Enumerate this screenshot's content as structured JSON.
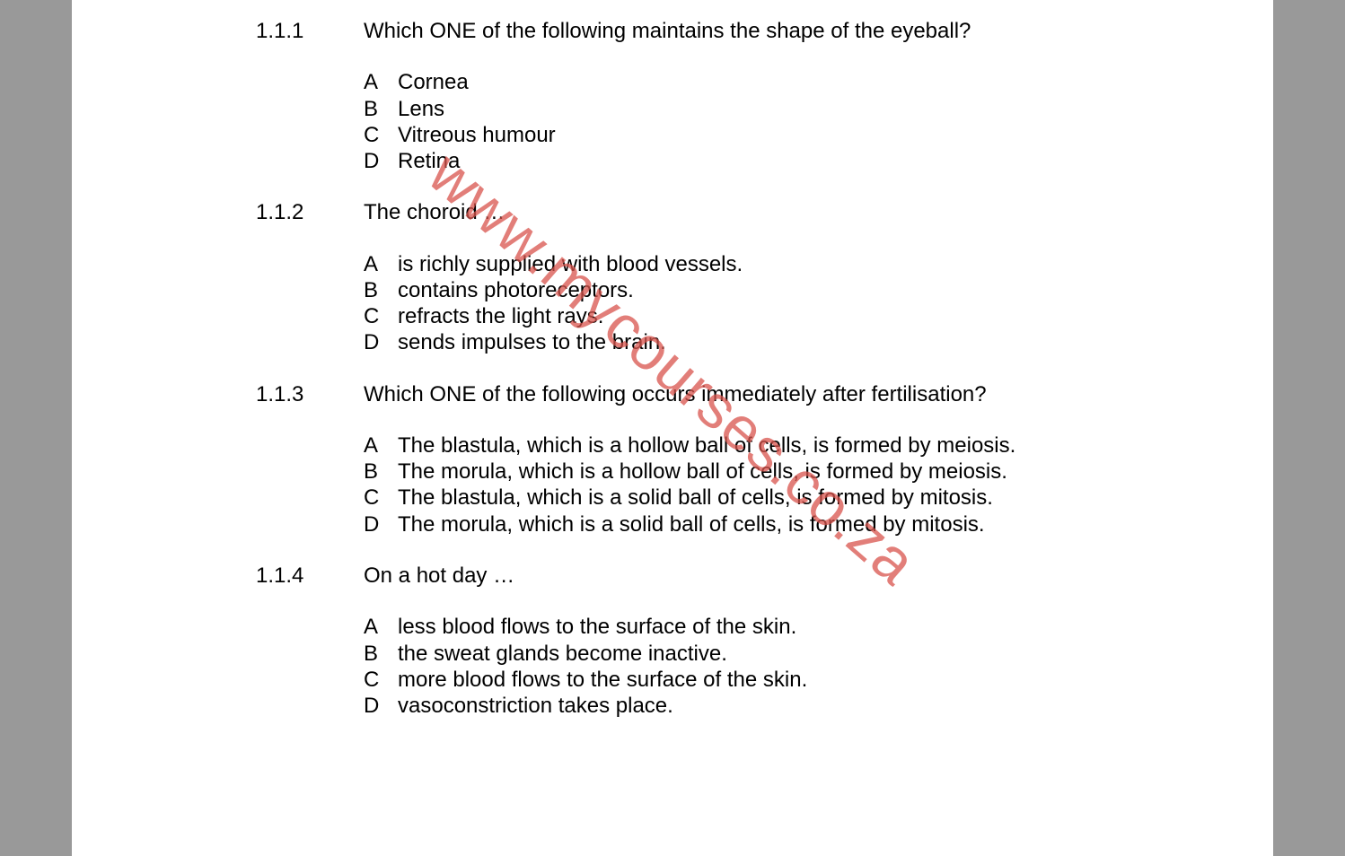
{
  "page": {
    "background_color": "#999999",
    "paper_color": "#ffffff",
    "text_color": "#000000",
    "font_family": "Arial",
    "font_size_pt": 18
  },
  "watermark": {
    "text": "www.mycourses.co.za",
    "color": "#d9544d",
    "rotation_deg": 41,
    "opacity": 0.75
  },
  "questions": [
    {
      "number": "1.1.1",
      "stem": "Which ONE of the following maintains the shape of the eyeball?",
      "justify": false,
      "options": {
        "A": "Cornea",
        "B": "Lens",
        "C": "Vitreous humour",
        "D": "Retina"
      }
    },
    {
      "number": "1.1.2",
      "stem": "The choroid …",
      "justify": false,
      "options": {
        "A": "is richly supplied with blood vessels.",
        "B": "contains photoreceptors.",
        "C": "refracts the light rays.",
        "D": "sends impulses to the brain."
      }
    },
    {
      "number": "1.1.3",
      "stem": "Which ONE of the following occurs immediately after fertilisation?",
      "justify": true,
      "options": {
        "A": "The blastula, which is a hollow ball of cells, is formed by meiosis.",
        "B": "The morula, which is a hollow ball of cells, is formed by meiosis.",
        "C": "The blastula, which is a solid ball of cells, is formed by mitosis.",
        "D": "The morula, which is a solid ball of cells, is formed by mitosis."
      }
    },
    {
      "number": "1.1.4",
      "stem": "On a hot day …",
      "justify": false,
      "options": {
        "A": "less blood flows to the surface of the skin.",
        "B": "the sweat glands become inactive.",
        "C": "more blood flows to the surface of the skin.",
        "D": "vasoconstriction takes place."
      }
    }
  ]
}
